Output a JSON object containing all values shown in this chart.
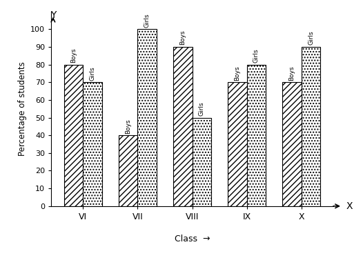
{
  "classes": [
    "VI",
    "VII",
    "VIII",
    "IX",
    "X"
  ],
  "boys": [
    80,
    40,
    90,
    70,
    70
  ],
  "girls": [
    70,
    100,
    50,
    80,
    90
  ],
  "ylabel": "Percentage of students",
  "xlabel": "Class",
  "xlabel_arrow": "Class  →",
  "ylim": [
    0,
    110
  ],
  "yticks": [
    0,
    10,
    20,
    30,
    40,
    50,
    60,
    70,
    80,
    90,
    100
  ],
  "bar_width": 0.35,
  "hatch_boys": "////",
  "hatch_girls": "....",
  "facecolor": "white",
  "edgecolor": "black",
  "title": ""
}
